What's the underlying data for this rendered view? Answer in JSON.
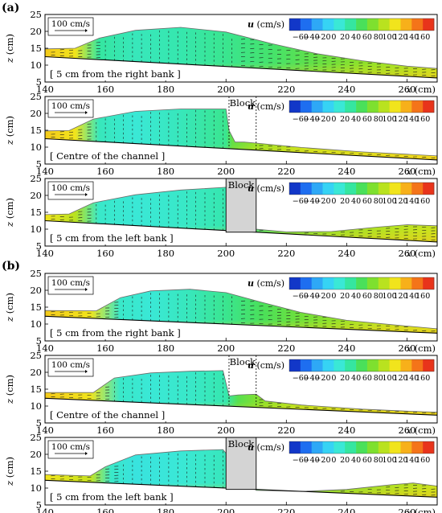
{
  "figure": {
    "panel_labels": [
      "(a)",
      "(b)"
    ],
    "colorbar": {
      "label": "u (cm/s)",
      "ticks": [
        "−60",
        "−40",
        "−20",
        "0",
        "20",
        "40",
        "60",
        "80",
        "100",
        "120",
        "140",
        "160"
      ],
      "range": [
        -70,
        170
      ],
      "colors": [
        "#1237c8",
        "#1e6ef0",
        "#2ea8f6",
        "#36d3f4",
        "#3ae8d6",
        "#35e6a0",
        "#4ae05a",
        "#7ee02f",
        "#b9e21f",
        "#f1e41c",
        "#f7b01a",
        "#f47419",
        "#e8341b"
      ]
    },
    "scale_arrow_label": "100 cm/s",
    "block_label": "Block"
  },
  "chart_data": [
    {
      "type": "vector-contour",
      "panel": "(a)",
      "annotation": "[ 5 cm from the right bank ]",
      "xlabel": "x (cm)",
      "ylabel": "z (cm)",
      "xlim": [
        140,
        270
      ],
      "ylim": [
        5,
        25
      ],
      "xticks": [
        140,
        160,
        180,
        200,
        220,
        240,
        260
      ],
      "yticks": [
        5,
        10,
        15,
        20,
        25
      ],
      "block": false,
      "bed": {
        "x": [
          140,
          270
        ],
        "z": [
          12.5,
          6.2
        ]
      },
      "surface": {
        "x": [
          140,
          150,
          158,
          170,
          185,
          200,
          215,
          230,
          245,
          260,
          270
        ],
        "z": [
          14.8,
          15.0,
          18.0,
          20.3,
          21.2,
          19.8,
          16.4,
          13.4,
          11.3,
          9.7,
          9.0
        ]
      },
      "fill_x": [
        140,
        150,
        158,
        170,
        185,
        200,
        215,
        230,
        245,
        260,
        270
      ],
      "fill_u": [
        120,
        110,
        30,
        20,
        25,
        35,
        45,
        60,
        75,
        85,
        95
      ]
    },
    {
      "type": "vector-contour",
      "panel": "(a)",
      "annotation": "[ Centre of the channel ]",
      "xlabel": "x (cm)",
      "ylabel": "z (cm)",
      "xlim": [
        140,
        270
      ],
      "ylim": [
        5,
        25
      ],
      "xticks": [
        140,
        160,
        180,
        200,
        220,
        240,
        260
      ],
      "yticks": [
        5,
        10,
        15,
        20,
        25
      ],
      "block": true,
      "block_style": "dashed",
      "block_x": [
        201,
        210
      ],
      "bed": {
        "x": [
          140,
          270
        ],
        "z": [
          12.5,
          6.2
        ]
      },
      "surface": {
        "x": [
          140,
          148,
          156,
          170,
          185,
          200,
          201,
          203,
          206,
          210,
          225,
          245,
          260,
          270
        ],
        "z": [
          14.8,
          14.9,
          18.3,
          20.6,
          21.3,
          21.3,
          15.0,
          11.5,
          11.5,
          11.2,
          9.9,
          8.6,
          7.9,
          7.4
        ]
      },
      "fill_x": [
        140,
        150,
        158,
        170,
        185,
        200,
        202,
        210,
        225,
        245,
        270
      ],
      "fill_u": [
        120,
        110,
        20,
        10,
        20,
        35,
        60,
        80,
        95,
        100,
        110
      ]
    },
    {
      "type": "vector-contour",
      "panel": "(a)",
      "annotation": "[ 5 cm from the left bank ]",
      "xlabel": "x (cm)",
      "ylabel": "z (cm)",
      "xlim": [
        140,
        270
      ],
      "ylim": [
        5,
        25
      ],
      "xticks": [
        140,
        160,
        180,
        200,
        220,
        240,
        260
      ],
      "yticks": [
        5,
        10,
        15,
        20,
        25
      ],
      "block": true,
      "block_style": "solid",
      "block_x": [
        200,
        210
      ],
      "bed": {
        "x": [
          140,
          270
        ],
        "z": [
          12.5,
          6.2
        ]
      },
      "surface": {
        "x": [
          140,
          148,
          156,
          170,
          185,
          200,
          210,
          220,
          235,
          250,
          260,
          270
        ],
        "z": [
          14.3,
          14.5,
          17.8,
          20.2,
          21.6,
          22.4,
          10.0,
          9.2,
          9.3,
          10.6,
          11.3,
          11.0
        ]
      },
      "fill_x": [
        140,
        150,
        158,
        170,
        185,
        200,
        210,
        220,
        235,
        250,
        270
      ],
      "fill_u": [
        110,
        90,
        15,
        10,
        15,
        25,
        40,
        60,
        75,
        85,
        95
      ]
    },
    {
      "type": "vector-contour",
      "panel": "(b)",
      "annotation": "[ 5 cm from the right bank ]",
      "xlabel": "x (cm)",
      "ylabel": "z (cm)",
      "xlim": [
        140,
        270
      ],
      "ylim": [
        5,
        25
      ],
      "xticks": [
        140,
        160,
        180,
        200,
        220,
        240,
        260
      ],
      "yticks": [
        5,
        10,
        15,
        20,
        25
      ],
      "block": false,
      "bed": {
        "x": [
          140,
          270
        ],
        "z": [
          12.3,
          7.3
        ]
      },
      "surface": {
        "x": [
          140,
          157,
          165,
          175,
          188,
          200,
          212,
          225,
          240,
          255,
          270
        ],
        "z": [
          14.0,
          13.9,
          17.8,
          19.8,
          20.3,
          19.3,
          16.4,
          13.4,
          11.1,
          9.8,
          8.6
        ]
      },
      "fill_x": [
        140,
        155,
        165,
        175,
        188,
        200,
        212,
        225,
        240,
        255,
        270
      ],
      "fill_u": [
        120,
        110,
        15,
        10,
        20,
        35,
        50,
        65,
        80,
        95,
        100
      ]
    },
    {
      "type": "vector-contour",
      "panel": "(b)",
      "annotation": "[ Centre of the channel ]",
      "xlabel": "x (cm)",
      "ylabel": "z (cm)",
      "xlim": [
        140,
        270
      ],
      "ylim": [
        5,
        25
      ],
      "xticks": [
        140,
        160,
        180,
        200,
        220,
        240,
        260
      ],
      "yticks": [
        5,
        10,
        15,
        20,
        25
      ],
      "block": true,
      "block_style": "dashed",
      "block_x": [
        201,
        210
      ],
      "bed": {
        "x": [
          140,
          270
        ],
        "z": [
          12.3,
          7.3
        ]
      },
      "surface": {
        "x": [
          140,
          156,
          163,
          175,
          188,
          199,
          201,
          204,
          210,
          213,
          225,
          245,
          260,
          270
        ],
        "z": [
          14.0,
          14.0,
          18.3,
          19.8,
          20.3,
          20.5,
          13.0,
          13.3,
          13.5,
          11.5,
          10.3,
          9.1,
          8.5,
          8.2
        ]
      },
      "fill_x": [
        140,
        155,
        165,
        175,
        188,
        200,
        204,
        212,
        225,
        245,
        270
      ],
      "fill_u": [
        120,
        110,
        15,
        10,
        15,
        25,
        55,
        75,
        90,
        100,
        105
      ]
    },
    {
      "type": "vector-contour",
      "panel": "(b)",
      "annotation": "[ 5 cm from the left bank ]",
      "xlabel": "x (cm)",
      "ylabel": "z (cm)",
      "xlim": [
        140,
        270
      ],
      "ylim": [
        5,
        25
      ],
      "xticks": [
        140,
        160,
        180,
        200,
        220,
        240,
        260
      ],
      "yticks": [
        5,
        10,
        15,
        20,
        25
      ],
      "block": true,
      "block_style": "solid",
      "block_x": [
        200,
        210
      ],
      "bed": {
        "x": [
          140,
          270
        ],
        "z": [
          12.3,
          7.3
        ]
      },
      "surface": {
        "x": [
          140,
          155,
          160,
          170,
          185,
          199,
          210,
          225,
          240,
          255,
          262,
          270
        ],
        "z": [
          14.0,
          13.6,
          16.3,
          19.8,
          21.0,
          21.4,
          9.3,
          9.0,
          9.6,
          11.0,
          11.5,
          10.6
        ]
      },
      "fill_x": [
        140,
        155,
        162,
        170,
        185,
        200,
        210,
        225,
        240,
        255,
        270
      ],
      "fill_u": [
        110,
        95,
        15,
        5,
        10,
        20,
        35,
        55,
        70,
        85,
        95
      ]
    }
  ]
}
